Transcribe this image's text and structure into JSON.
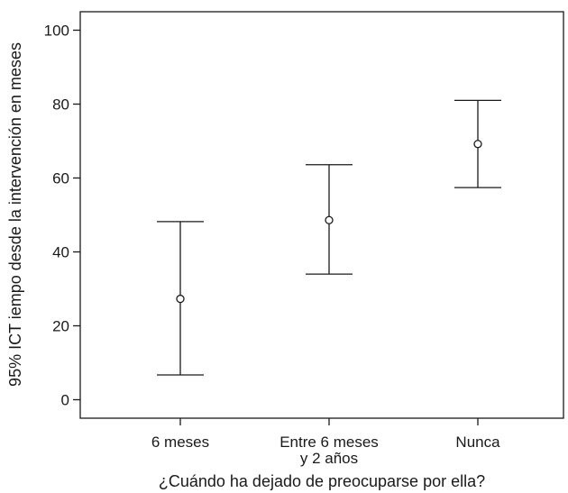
{
  "chart_data": {
    "type": "errorbar",
    "categories": [
      [
        "6 meses"
      ],
      [
        "Entre 6 meses",
        "y 2 años"
      ],
      [
        "Nunca"
      ]
    ],
    "points": [
      {
        "mean": 27.3,
        "lower": 6.7,
        "upper": 48.2
      },
      {
        "mean": 48.6,
        "lower": 34.0,
        "upper": 63.6
      },
      {
        "mean": 69.2,
        "lower": 57.4,
        "upper": 81.0
      }
    ],
    "xlabel": "¿Cuándo ha dejado de preocuparse por ella?",
    "ylabel": "95% ICT iempo desde la intervención en meses",
    "ylim": [
      -5,
      105
    ],
    "yticks": [
      0,
      20,
      40,
      60,
      80,
      100
    ],
    "grid": false,
    "colors": {
      "axis": "#1a1a1a",
      "marks": "#1a1a1a"
    }
  }
}
